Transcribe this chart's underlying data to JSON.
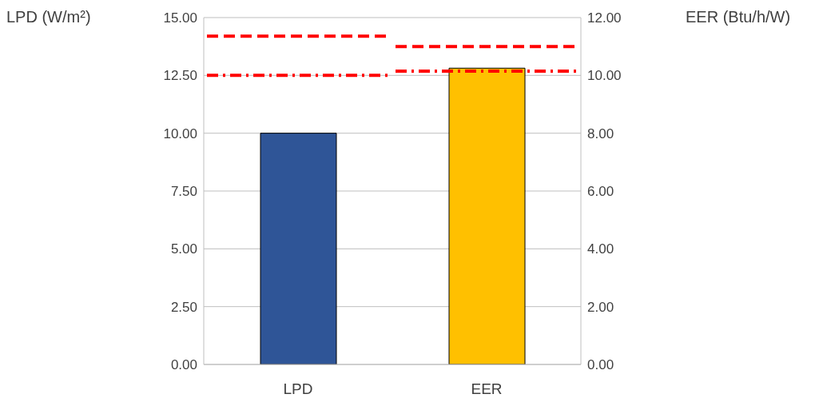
{
  "chart_data": {
    "type": "bar",
    "ylabel": "LPD (W/m²)",
    "y2label": "EER (Btu/h/W)",
    "categories": [
      "LPD",
      "EER"
    ],
    "series": [
      {
        "color": "#2f5597",
        "values": [
          10,
          null
        ]
      },
      {
        "color": "#ffc000",
        "values": [
          null,
          10.25
        ],
        "axis": "y2"
      }
    ],
    "ylim": [
      0,
      15
    ],
    "yticks": [
      {
        "value": 0,
        "label": "0.00"
      },
      {
        "value": 2.5,
        "label": "2.50"
      },
      {
        "value": 5,
        "label": "5.00"
      },
      {
        "value": 7.5,
        "label": "7.50"
      },
      {
        "value": 10,
        "label": "10.00"
      },
      {
        "value": 12.5,
        "label": "12.50"
      },
      {
        "value": 15,
        "label": "15.00"
      }
    ],
    "y2lim": [
      0,
      12
    ],
    "y2ticks": [
      {
        "value": 0,
        "label": "0.00"
      },
      {
        "value": 2,
        "label": "2.00"
      },
      {
        "value": 4,
        "label": "4.00"
      },
      {
        "value": 6,
        "label": "6.00"
      },
      {
        "value": 8,
        "label": "8.00"
      },
      {
        "value": 10,
        "label": "10.00"
      },
      {
        "value": 12,
        "label": "12.00"
      }
    ],
    "ref_lines": [
      {
        "axis": "y",
        "value": 14.2,
        "color": "#ff0000",
        "line_style": "dashed"
      },
      {
        "axis": "y",
        "value": 12.5,
        "color": "#ff0000",
        "line_style": "dashdot"
      },
      {
        "axis": "y2",
        "value": 11.0,
        "color": "#ff0000",
        "line_style": "dashed"
      },
      {
        "axis": "y2",
        "value": 10.15,
        "color": "#ff0000",
        "line_style": "dashdot"
      }
    ],
    "grid": "y",
    "legend": false
  }
}
